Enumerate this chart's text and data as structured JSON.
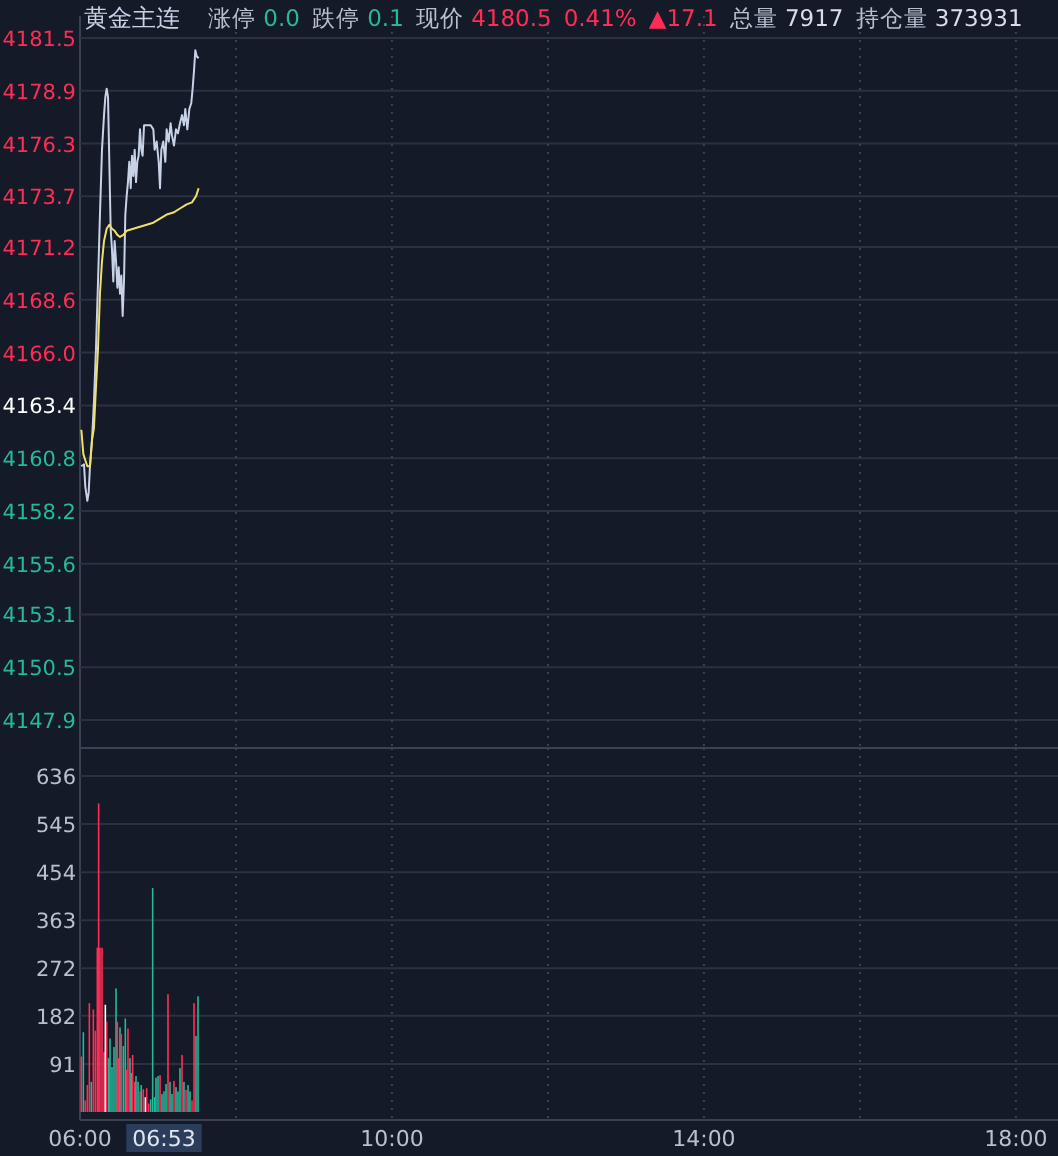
{
  "chart_data": [
    {
      "type": "line",
      "title": "黄金主连",
      "annotations": [
        "涨停 0.0",
        "跌停 0.1",
        "现价 4180.5",
        "0.41%",
        "▲17.1",
        "总量 7917",
        "持仓量 373931"
      ],
      "xlim": [
        6,
        18.54
      ],
      "ylim": [
        4147.9,
        4181.5
      ],
      "xticks": [
        {
          "value": 6,
          "label": null
        },
        {
          "value": 8,
          "label": null
        },
        {
          "value": 10,
          "label": null
        },
        {
          "value": 12,
          "label": null
        },
        {
          "value": 14,
          "label": null
        },
        {
          "value": 16,
          "label": null
        },
        {
          "value": 18,
          "label": null
        }
      ],
      "yticks": [
        4181.5,
        4178.9,
        4176.3,
        4173.7,
        4171.2,
        4168.6,
        {
          "value": 4166.0,
          "label": "4166.0"
        },
        4163.4,
        4160.8,
        4158.2,
        4155.6,
        4153.1,
        4150.5,
        4147.9
      ],
      "tick_labels": "y",
      "grid": true,
      "series": [
        {
          "color": "#c8d2e6",
          "x": [
            6.017,
            6.051,
            6.068,
            6.094,
            6.111,
            6.128,
            6.154,
            6.179,
            6.205,
            6.231,
            6.256,
            6.282,
            6.308,
            6.325,
            6.342,
            6.359,
            6.376,
            6.393,
            6.41,
            6.427,
            6.444,
            6.462,
            6.479,
            6.496,
            6.513,
            6.53,
            6.547,
            6.564,
            6.581,
            6.598,
            6.615,
            6.632,
            6.65,
            6.667,
            6.684,
            6.701,
            6.718,
            6.735,
            6.752,
            6.769,
            6.786,
            6.803,
            6.821,
            6.872,
            6.906,
            6.94,
            6.957,
            6.983,
            7.009,
            7.026,
            7.043,
            7.068,
            7.094,
            7.111,
            7.137,
            7.162,
            7.179,
            7.205,
            7.231,
            7.256,
            7.282,
            7.308,
            7.333,
            7.35,
            7.376,
            7.402,
            7.427,
            7.444,
            7.462,
            7.479,
            7.496,
            7.521
          ],
          "values": [
            4160.4,
            4160.5,
            4159.4,
            4158.7,
            4159.1,
            4160.4,
            4161.7,
            4163.6,
            4166.2,
            4169.5,
            4172.8,
            4176.0,
            4177.7,
            4178.6,
            4179.0,
            4178.6,
            4175.4,
            4172.1,
            4171.1,
            4169.5,
            4171.5,
            4170.5,
            4169.2,
            4170.2,
            4168.9,
            4169.8,
            4167.8,
            4169.5,
            4172.8,
            4173.7,
            4174.4,
            4175.4,
            4174.1,
            4175.7,
            4174.7,
            4176.0,
            4174.4,
            4175.4,
            4175.7,
            4177.0,
            4176.0,
            4175.7,
            4177.2,
            4177.2,
            4177.2,
            4177.0,
            4176.0,
            4176.4,
            4175.4,
            4174.1,
            4176.0,
            4176.4,
            4175.4,
            4177.0,
            4176.4,
            4177.3,
            4176.7,
            4176.2,
            4177.0,
            4176.8,
            4177.3,
            4177.7,
            4177.2,
            4178.0,
            4177.0,
            4178.0,
            4178.3,
            4179.0,
            4179.9,
            4180.9,
            4180.6,
            4180.5
          ]
        },
        {
          "color": "#f0e068",
          "x": [
            6.017,
            6.043,
            6.068,
            6.094,
            6.128,
            6.154,
            6.179,
            6.205,
            6.231,
            6.256,
            6.282,
            6.308,
            6.342,
            6.376,
            6.41,
            6.444,
            6.479,
            6.513,
            6.556,
            6.598,
            6.684,
            6.769,
            6.855,
            6.94,
            7.026,
            7.111,
            7.197,
            7.282,
            7.368,
            7.436,
            7.487,
            7.521
          ],
          "values": [
            4162.2,
            4161.0,
            4160.7,
            4160.4,
            4160.4,
            4161.7,
            4162.3,
            4164.3,
            4166.2,
            4168.9,
            4170.5,
            4171.5,
            4172.1,
            4172.3,
            4172.1,
            4172.0,
            4171.8,
            4171.7,
            4171.8,
            4172.0,
            4172.1,
            4172.2,
            4172.3,
            4172.4,
            4172.6,
            4172.8,
            4172.9,
            4173.1,
            4173.3,
            4173.4,
            4173.7,
            4174.1
          ]
        }
      ]
    },
    {
      "type": "bar",
      "annotations": [
        "06:53"
      ],
      "xlim": [
        6,
        18.54
      ],
      "ylim": [
        0,
        636
      ],
      "xticks": [
        {
          "value": 6,
          "label": "06:00"
        },
        {
          "value": 8,
          "label": null
        },
        {
          "value": 10,
          "label": "10:00"
        },
        {
          "value": 12,
          "label": null
        },
        {
          "value": 14,
          "label": "14:00"
        },
        {
          "value": 16,
          "label": null
        },
        {
          "value": 18,
          "label": "18:00"
        }
      ],
      "yticks": [
        91,
        182,
        272,
        363,
        454,
        545,
        636
      ],
      "grid": true,
      "x": [
        6.017,
        6.043,
        6.068,
        6.094,
        6.12,
        6.145,
        6.171,
        6.197,
        6.222,
        6.239,
        6.256,
        6.282,
        6.308,
        6.325,
        6.342,
        6.368,
        6.385,
        6.41,
        6.436,
        6.462,
        6.479,
        6.496,
        6.513,
        6.53,
        6.556,
        6.581,
        6.598,
        6.615,
        6.641,
        6.658,
        6.675,
        6.701,
        6.718,
        6.744,
        6.769,
        6.786,
        6.812,
        6.838,
        6.855,
        6.88,
        6.906,
        6.932,
        6.957,
        6.974,
        7.0,
        7.026,
        7.051,
        7.077,
        7.103,
        7.128,
        7.154,
        7.179,
        7.205,
        7.231,
        7.256,
        7.282,
        7.308,
        7.333,
        7.359,
        7.385,
        7.41,
        7.436,
        7.462,
        7.487,
        7.513
      ],
      "values": [
        105,
        151,
        22,
        51,
        206,
        57,
        194,
        154,
        311,
        584,
        311,
        311,
        114,
        203,
        171,
        102,
        139,
        85,
        123,
        234,
        171,
        102,
        160,
        148,
        125,
        177,
        80,
        158,
        102,
        74,
        108,
        57,
        68,
        57,
        39,
        51,
        43,
        28,
        45,
        16,
        24,
        424,
        28,
        65,
        68,
        70,
        34,
        39,
        53,
        223,
        57,
        34,
        59,
        47,
        39,
        83,
        108,
        57,
        42,
        51,
        39,
        22,
        206,
        144,
        219
      ],
      "colors": [
        "#ff2d55",
        "#26b89a",
        "#ff2d55",
        "#ff2d55",
        "#ff2d55",
        "#26b89a",
        "#ff2d55",
        "#ff2d55",
        "#ff2d55",
        "#ff2d55",
        "#ff2d55",
        "#ff2d55",
        "#ff2d55",
        "#ffffff",
        "#ff2d55",
        "#26b89a",
        "#26b89a",
        "#26b89a",
        "#26b89a",
        "#26b89a",
        "#ff2d55",
        "#ff2d55",
        "#26b89a",
        "#ff2d55",
        "#26b89a",
        "#26b89a",
        "#ff2d55",
        "#ff2d55",
        "#26b89a",
        "#26b89a",
        "#ff2d55",
        "#ff2d55",
        "#26b89a",
        "#26b89a",
        "#ff2d55",
        "#26b89a",
        "#ff2d55",
        "#ffffff",
        "#ff2d55",
        "#ff2d55",
        "#26b89a",
        "#26b89a",
        "#26b89a",
        "#26b89a",
        "#26b89a",
        "#ff2d55",
        "#26b89a",
        "#26b89a",
        "#26b89a",
        "#ff2d55",
        "#26b89a",
        "#26b89a",
        "#ff2d55",
        "#26b89a",
        "#26b89a",
        "#26b89a",
        "#ff2d55",
        "#26b89a",
        "#ff2d55",
        "#26b89a",
        "#26b89a",
        "#ff2d55",
        "#ff2d55",
        "#26b89a",
        "#26b89a"
      ]
    }
  ]
}
